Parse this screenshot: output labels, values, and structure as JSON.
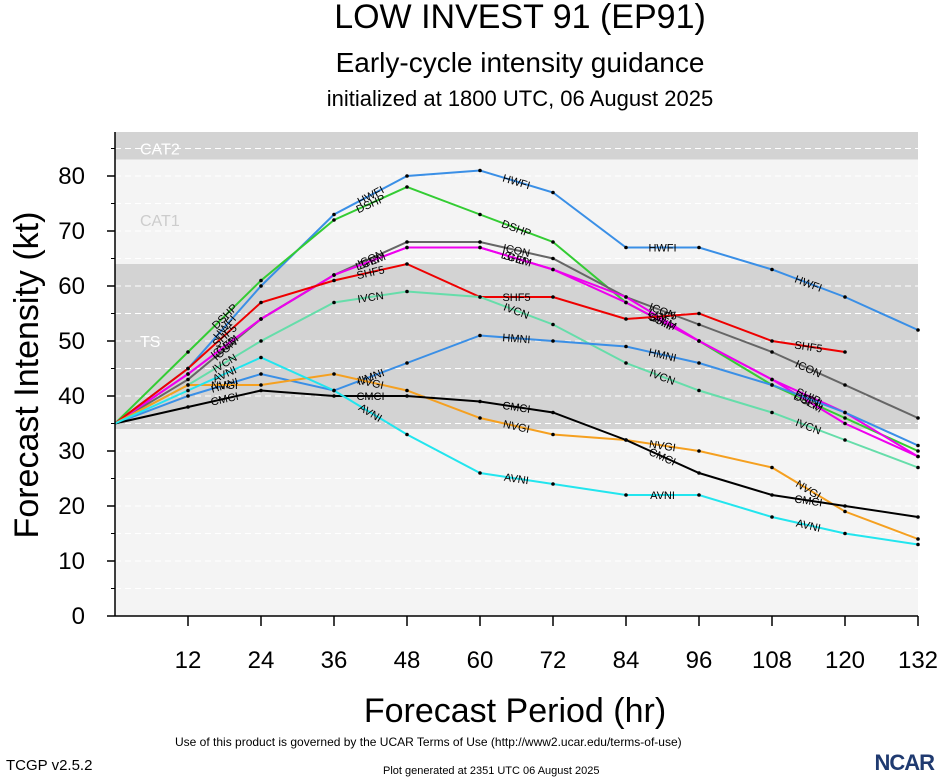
{
  "header": {
    "title": "LOW INVEST 91 (EP91)",
    "subtitle": "Early-cycle intensity guidance",
    "init_line": "initialized at 1800 UTC, 06 August 2025"
  },
  "footer": {
    "terms": "Use of this product is governed by the UCAR Terms of Use (http://www2.ucar.edu/terms-of-use)",
    "version": "TCGP v2.5.2",
    "generated": "Plot generated at 2351 UTC   06 August 2025",
    "logo": "NCAR"
  },
  "chart_data": {
    "type": "line",
    "title": "LOW INVEST 91 (EP91)",
    "subtitle": "Early-cycle intensity guidance",
    "xlabel": "Forecast Period (hr)",
    "ylabel": "Forecast Intensity (kt)",
    "xlim": [
      0,
      132
    ],
    "ylim": [
      0,
      88
    ],
    "xticks": [
      12,
      24,
      36,
      48,
      60,
      72,
      84,
      96,
      108,
      120,
      132
    ],
    "yticks": [
      0,
      10,
      20,
      30,
      40,
      50,
      60,
      70,
      80
    ],
    "bands": [
      {
        "name": "TS",
        "min": 34,
        "max": 64,
        "color": "#d3d3d3"
      },
      {
        "name": "CAT1",
        "min": 64,
        "max": 83,
        "color": "#f4f4f4"
      },
      {
        "name": "CAT2",
        "min": 83,
        "max": 96,
        "color": "#d3d3d3"
      }
    ],
    "series": [
      {
        "name": "HWFI",
        "color": "#3a8fe6",
        "x": [
          0,
          12,
          24,
          36,
          48,
          60,
          72,
          84,
          96,
          108,
          120,
          132
        ],
        "y": [
          35,
          45,
          60,
          73,
          80,
          81,
          77,
          67,
          67,
          63,
          58,
          52
        ]
      },
      {
        "name": "DSHP",
        "color": "#33cc33",
        "x": [
          0,
          12,
          24,
          36,
          48,
          60,
          72,
          84,
          96,
          108,
          120,
          132
        ],
        "y": [
          35,
          48,
          61,
          72,
          78,
          73,
          68,
          57,
          50,
          42,
          36,
          30
        ]
      },
      {
        "name": "SHIP",
        "color": "#ee00ee",
        "x": [
          0,
          12,
          24,
          36,
          48,
          60,
          72,
          84,
          96,
          108,
          120,
          132
        ],
        "y": [
          35,
          44,
          54,
          62,
          67,
          67,
          63,
          57,
          50,
          43,
          37,
          29
        ]
      },
      {
        "name": "ICON",
        "color": "#666666",
        "x": [
          0,
          12,
          24,
          36,
          48,
          60,
          72,
          84,
          96,
          108,
          120,
          132
        ],
        "y": [
          35,
          43,
          54,
          62,
          68,
          68,
          65,
          58,
          53,
          48,
          42,
          36
        ]
      },
      {
        "name": "LGEM",
        "color": "#ee00ee",
        "x": [
          0,
          12,
          24,
          36,
          48,
          60,
          72,
          84,
          96,
          108,
          120,
          132
        ],
        "y": [
          35,
          44,
          54,
          62,
          67,
          67,
          63,
          58,
          50,
          43,
          35,
          29
        ]
      },
      {
        "name": "SHF5",
        "color": "#ee0000",
        "x": [
          0,
          12,
          24,
          36,
          48,
          60,
          72,
          84,
          96,
          108,
          120
        ],
        "y": [
          35,
          45,
          57,
          61,
          64,
          58,
          58,
          54,
          55,
          50,
          48
        ]
      },
      {
        "name": "IVCN",
        "color": "#66ddaa",
        "x": [
          0,
          12,
          24,
          36,
          48,
          60,
          72,
          84,
          96,
          108,
          120,
          132
        ],
        "y": [
          35,
          42,
          50,
          57,
          59,
          58,
          53,
          46,
          41,
          37,
          32,
          27
        ]
      },
      {
        "name": "HMNI",
        "color": "#3a8fe6",
        "x": [
          0,
          12,
          24,
          36,
          48,
          60,
          72,
          84,
          96,
          108,
          120,
          132
        ],
        "y": [
          35,
          40,
          44,
          41,
          46,
          51,
          50,
          49,
          46,
          42,
          37,
          31
        ]
      },
      {
        "name": "NVGI",
        "color": "#f5a020",
        "x": [
          0,
          12,
          24,
          36,
          48,
          60,
          72,
          84,
          96,
          108,
          120,
          132
        ],
        "y": [
          35,
          42,
          42,
          44,
          41,
          36,
          33,
          32,
          30,
          27,
          19,
          14
        ]
      },
      {
        "name": "CMCI",
        "color": "#000000",
        "x": [
          0,
          12,
          24,
          36,
          48,
          60,
          72,
          84,
          96,
          108,
          120,
          132
        ],
        "y": [
          35,
          38,
          41,
          40,
          40,
          39,
          37,
          32,
          26,
          22,
          20,
          18
        ]
      },
      {
        "name": "AVNI",
        "color": "#22e5ee",
        "x": [
          0,
          12,
          24,
          36,
          48,
          60,
          72,
          84,
          96,
          108,
          120,
          132
        ],
        "y": [
          35,
          41,
          47,
          41,
          33,
          26,
          24,
          22,
          22,
          18,
          15,
          13
        ]
      }
    ]
  }
}
